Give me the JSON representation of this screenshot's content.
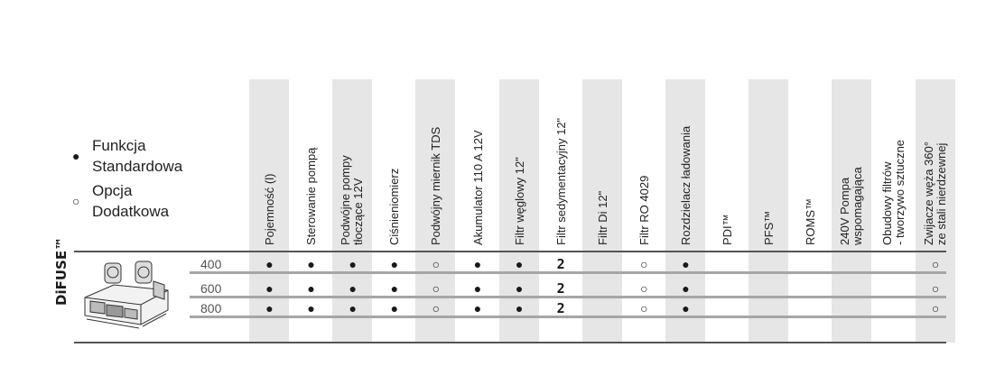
{
  "legend": [
    {
      "symbol": "●",
      "label": "Funkcja\nStandardowa"
    },
    {
      "symbol": "○",
      "label": "Opcja\nDodatkowa"
    }
  ],
  "brand": "DiFUSE™",
  "columns": [
    {
      "label": "Pojemność (l)",
      "shaded": true
    },
    {
      "label": "Sterowanie pompą",
      "shaded": false
    },
    {
      "label": "Podwójne pompy\ntłoczące 12V",
      "shaded": true
    },
    {
      "label": "Ciśnieniomierz",
      "shaded": false
    },
    {
      "label": "Podwójny miernik TDS",
      "shaded": true
    },
    {
      "label": "Akumulator 110 A 12V",
      "shaded": false
    },
    {
      "label": "Filtr węglowy 12\"",
      "shaded": true
    },
    {
      "label": "Filtr sedymentacyjny 12\"",
      "shaded": false
    },
    {
      "label": "Filtr Di 12\"",
      "shaded": true
    },
    {
      "label": "Filtr RO 4029",
      "shaded": false
    },
    {
      "label": "Rozdzielacz ładowania",
      "shaded": true
    },
    {
      "label": "PDI™",
      "shaded": false
    },
    {
      "label": "PFS™",
      "shaded": true
    },
    {
      "label": "ROMS™",
      "shaded": false
    },
    {
      "label": "240V Pompa\nwspomagająca",
      "shaded": true
    },
    {
      "label": "Obudowy filtrów\n- tworzywo sztuczne",
      "shaded": false
    },
    {
      "label": "Zwijacze węża 360°\nze stali nierdzewnej",
      "shaded": true
    }
  ],
  "rows": [
    {
      "model": "400",
      "cells": [
        "●",
        "●",
        "●",
        "●",
        "○",
        "●",
        "●",
        "2",
        "",
        "○",
        "●",
        "",
        "",
        "",
        "",
        "",
        "○"
      ]
    },
    {
      "model": "600",
      "cells": [
        "●",
        "●",
        "●",
        "●",
        "○",
        "●",
        "●",
        "2",
        "",
        "○",
        "●",
        "",
        "",
        "",
        "",
        "",
        "○"
      ]
    },
    {
      "model": "800",
      "cells": [
        "●",
        "●",
        "●",
        "●",
        "○",
        "●",
        "●",
        "2",
        "",
        "○",
        "●",
        "",
        "",
        "",
        "",
        "",
        "○"
      ]
    }
  ]
}
